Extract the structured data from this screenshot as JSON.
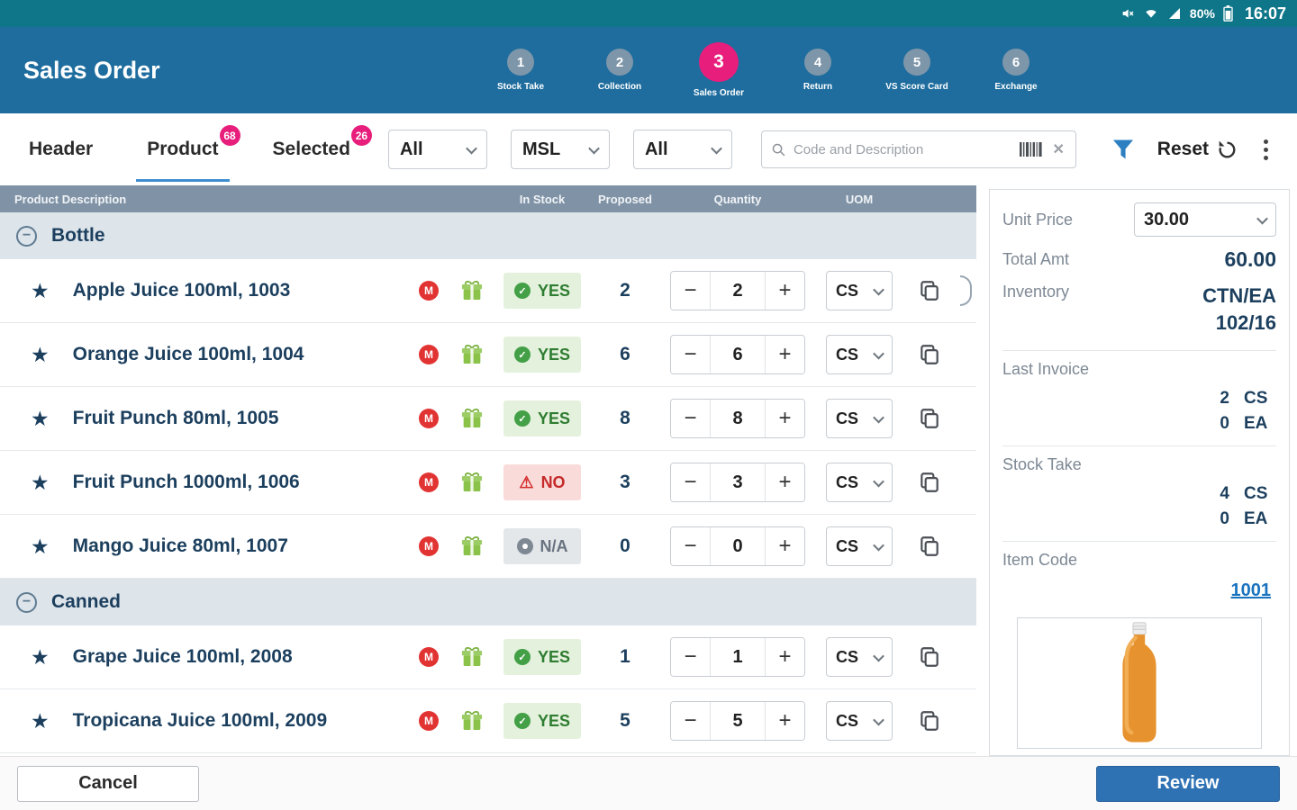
{
  "status_bar": {
    "time": "16:07",
    "battery_percent": "80%"
  },
  "header": {
    "title": "Sales Order",
    "steps": [
      {
        "num": "1",
        "label": "Stock Take"
      },
      {
        "num": "2",
        "label": "Collection"
      },
      {
        "num": "3",
        "label": "Sales Order"
      },
      {
        "num": "4",
        "label": "Return"
      },
      {
        "num": "5",
        "label": "VS Score Card"
      },
      {
        "num": "6",
        "label": "Exchange"
      }
    ]
  },
  "toolbar": {
    "tabs": [
      {
        "label": "Header"
      },
      {
        "label": "Product",
        "badge": "68"
      },
      {
        "label": "Selected",
        "badge": "26"
      }
    ],
    "filter_all_1": "All",
    "filter_msl": "MSL",
    "filter_all_2": "All",
    "search_placeholder": "Code and Description",
    "reset_label": "Reset"
  },
  "table": {
    "columns": [
      "Product Description",
      "In Stock",
      "Proposed",
      "Quantity",
      "UOM"
    ],
    "groups": [
      {
        "name": "Bottle",
        "rows": [
          {
            "name": "Apple Juice 100ml, 1003",
            "stock": "YES",
            "stock_type": "yes",
            "proposed": "2",
            "qty": "2",
            "uom": "CS",
            "handle": true
          },
          {
            "name": "Orange Juice 100ml, 1004",
            "stock": "YES",
            "stock_type": "yes",
            "proposed": "6",
            "qty": "6",
            "uom": "CS"
          },
          {
            "name": "Fruit Punch 80ml, 1005",
            "stock": "YES",
            "stock_type": "yes",
            "proposed": "8",
            "qty": "8",
            "uom": "CS"
          },
          {
            "name": "Fruit Punch 1000ml, 1006",
            "stock": "NO",
            "stock_type": "no",
            "proposed": "3",
            "qty": "3",
            "uom": "CS"
          },
          {
            "name": "Mango Juice 80ml, 1007",
            "stock": "N/A",
            "stock_type": "na",
            "proposed": "0",
            "qty": "0",
            "uom": "CS"
          }
        ]
      },
      {
        "name": "Canned",
        "rows": [
          {
            "name": "Grape Juice 100ml, 2008",
            "stock": "YES",
            "stock_type": "yes",
            "proposed": "1",
            "qty": "1",
            "uom": "CS"
          },
          {
            "name": "Tropicana Juice 100ml, 2009",
            "stock": "YES",
            "stock_type": "yes",
            "proposed": "5",
            "qty": "5",
            "uom": "CS"
          }
        ]
      }
    ]
  },
  "detail_panel": {
    "unit_price_label": "Unit Price",
    "unit_price": "30.00",
    "total_label": "Total Amt",
    "total_value": "60.00",
    "inventory_label": "Inventory",
    "inventory_uom": "CTN/EA",
    "inventory_value": "102/16",
    "last_invoice": {
      "label": "Last Invoice",
      "rows": [
        {
          "qty": "2",
          "uom": "CS"
        },
        {
          "qty": "0",
          "uom": "EA"
        }
      ]
    },
    "stock_take": {
      "label": "Stock Take",
      "rows": [
        {
          "qty": "4",
          "uom": "CS"
        },
        {
          "qty": "0",
          "uom": "EA"
        }
      ]
    },
    "item_code_label": "Item Code",
    "item_code": "1001"
  },
  "footer": {
    "cancel_label": "Cancel",
    "review_label": "Review"
  },
  "colors": {
    "accent_pink": "#e81e7c",
    "header_blue": "#1e6d9e",
    "status_teal": "#0f7689",
    "table_header_slate": "#8093a6",
    "link_blue": "#1a73bf",
    "review_blue": "#2f72b4",
    "yes_green": "#2f7d32",
    "no_red": "#c62a2a"
  }
}
